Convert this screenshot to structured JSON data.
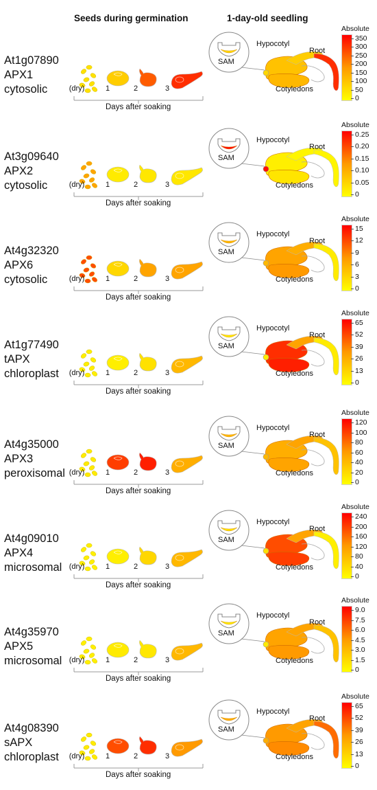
{
  "headers": {
    "seeds": "Seeds during germination",
    "seedling": "1-day-old seedling"
  },
  "seed_labels": [
    "(dry)",
    "1",
    "2",
    "3"
  ],
  "axis_title": "Days after soaking",
  "organ_labels": {
    "sam": "SAM",
    "hypocotyl": "Hypocotyl",
    "root": "Root",
    "cotyledons": "Cotyledons"
  },
  "legend_title": "Absolute",
  "colors": {
    "low": "#ffff00",
    "mid": "#ff9a00",
    "high": "#ff0000"
  },
  "panels": [
    {
      "gene": "At1g07890",
      "name": "APX1",
      "location": "cytosolic",
      "ticks": [
        "350",
        "300",
        "250",
        "200",
        "150",
        "100",
        "50",
        "0"
      ],
      "seed_levels": [
        0.15,
        0.25,
        0.7,
        0.85
      ],
      "seedling_levels": {
        "sam": 0.2,
        "hypocotyl": 0.25,
        "cotyledons": 0.3,
        "root": 0.85
      }
    },
    {
      "gene": "At3g09640",
      "name": "APX2",
      "location": "cytosolic",
      "ticks": [
        "0.25",
        "0.20",
        "0.15",
        "0.10",
        "0.05",
        "0"
      ],
      "seed_levels": [
        0.45,
        0.1,
        0.12,
        0.12
      ],
      "seedling_levels": {
        "sam": 0.95,
        "hypocotyl": 0.05,
        "cotyledons": 0.08,
        "root": 0.05
      }
    },
    {
      "gene": "At4g32320",
      "name": "APX6",
      "location": "cytosolic",
      "ticks": [
        "15",
        "12",
        "9",
        "6",
        "3",
        "0"
      ],
      "seed_levels": [
        0.75,
        0.2,
        0.45,
        0.45
      ],
      "seedling_levels": {
        "sam": 0.35,
        "hypocotyl": 0.4,
        "cotyledons": 0.45,
        "root": 0.1
      }
    },
    {
      "gene": "At1g77490",
      "name": "tAPX",
      "location": "chloroplast",
      "ticks": [
        "65",
        "52",
        "39",
        "26",
        "13",
        "0"
      ],
      "seed_levels": [
        0.08,
        0.08,
        0.15,
        0.35
      ],
      "seedling_levels": {
        "sam": 0.1,
        "hypocotyl": 0.45,
        "cotyledons": 0.85,
        "root": 0.1
      }
    },
    {
      "gene": "At4g35000",
      "name": "APX3",
      "location": "peroxisomal",
      "ticks": [
        "120",
        "100",
        "80",
        "60",
        "40",
        "20",
        "0"
      ],
      "seed_levels": [
        0.1,
        0.8,
        0.9,
        0.4
      ],
      "seedling_levels": {
        "sam": 0.35,
        "hypocotyl": 0.45,
        "cotyledons": 0.4,
        "root": 0.3
      }
    },
    {
      "gene": "At4g09010",
      "name": "APX4",
      "location": "microsomal",
      "ticks": [
        "240",
        "200",
        "160",
        "120",
        "80",
        "40",
        "0"
      ],
      "seed_levels": [
        0.08,
        0.08,
        0.2,
        0.35
      ],
      "seedling_levels": {
        "sam": 0.15,
        "hypocotyl": 0.45,
        "cotyledons": 0.75,
        "root": 0.08
      }
    },
    {
      "gene": "At4g35970",
      "name": "APX5",
      "location": "microsomal",
      "ticks": [
        "9.0",
        "7.5",
        "6.0",
        "4.5",
        "3.0",
        "1.5",
        "0"
      ],
      "seed_levels": [
        0.08,
        0.1,
        0.12,
        0.35
      ],
      "seedling_levels": {
        "sam": 0.1,
        "hypocotyl": 0.45,
        "cotyledons": 0.45,
        "root": 0.3
      }
    },
    {
      "gene": "At4g08390",
      "name": "sAPX",
      "location": "chloroplast",
      "ticks": [
        "65",
        "52",
        "39",
        "26",
        "13",
        "0"
      ],
      "seed_levels": [
        0.1,
        0.75,
        0.85,
        0.5
      ],
      "seedling_levels": {
        "sam": 0.4,
        "hypocotyl": 0.45,
        "cotyledons": 0.5,
        "root": 0.65
      }
    }
  ]
}
